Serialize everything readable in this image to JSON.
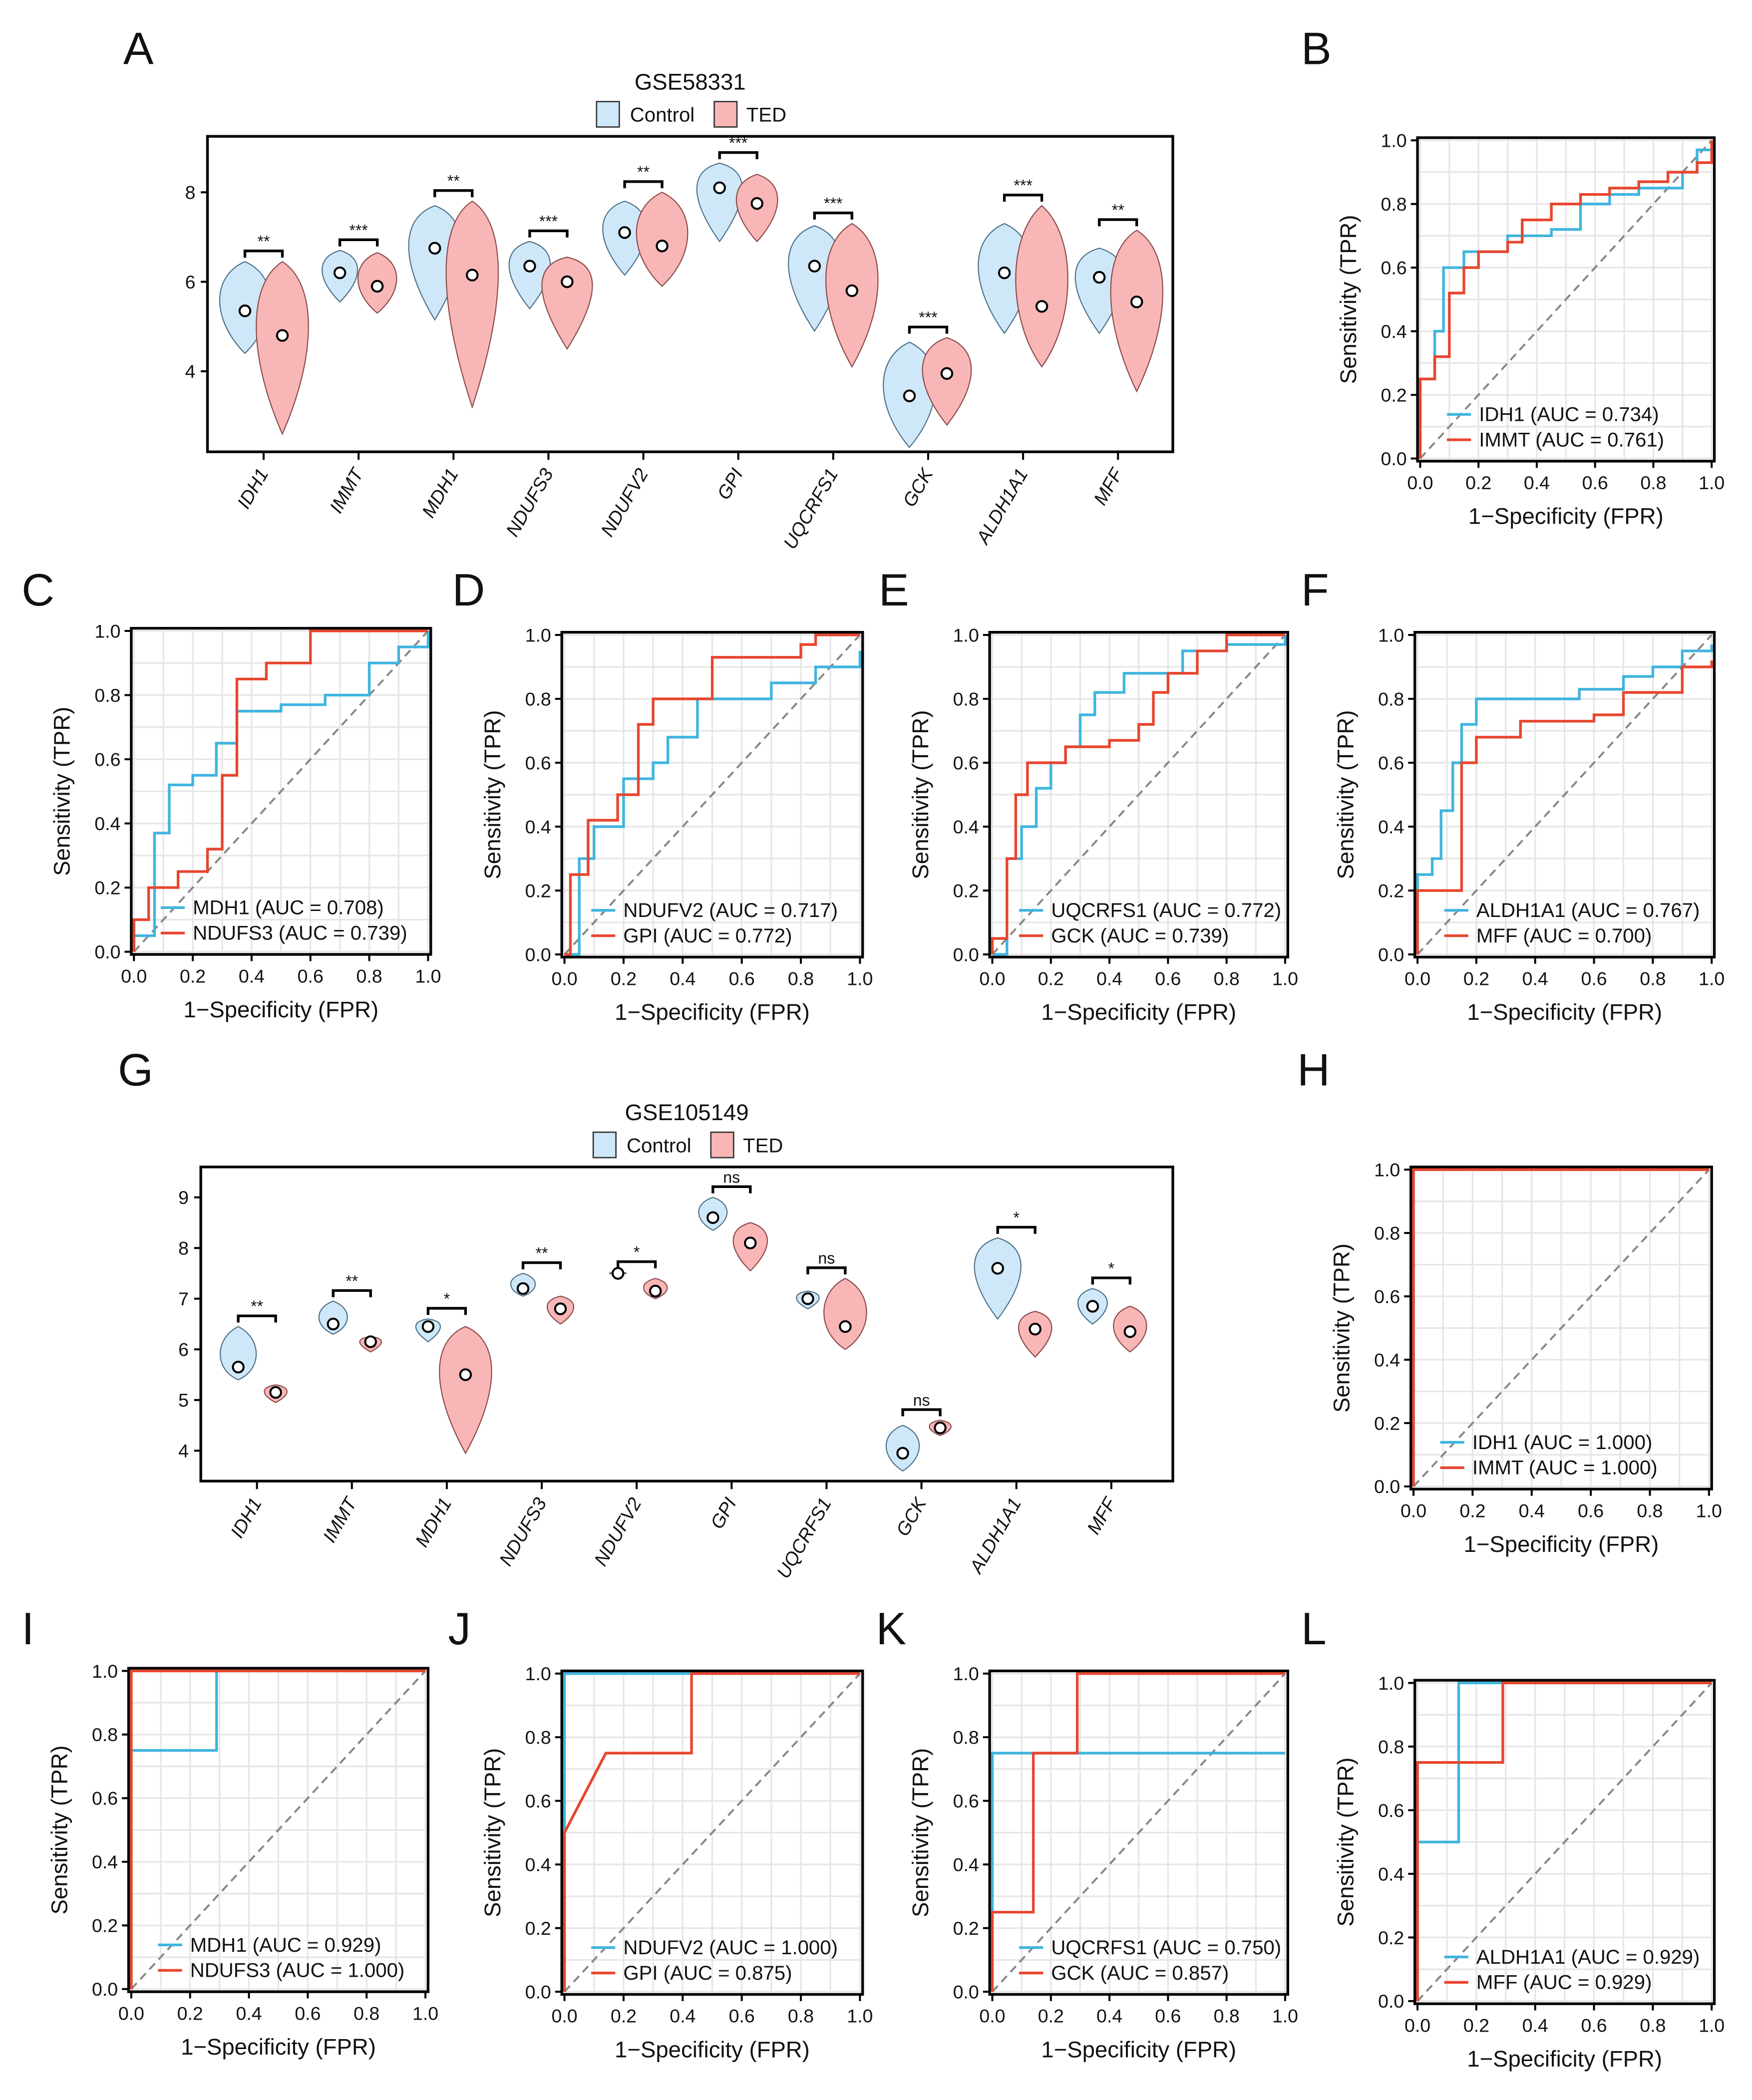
{
  "colors": {
    "control_fill": "#cfe8f9",
    "control_stroke": "#4a6f86",
    "ted_fill": "#f8b6b6",
    "ted_stroke": "#8a4848",
    "roc_blue": "#3fb4df",
    "roc_red": "#e8452e",
    "diagonal": "#888888",
    "grid": "#e6e6e6"
  },
  "chart_data": [
    {
      "panel": "A",
      "type": "violin",
      "title": "GSE58331",
      "legend": [
        "Control",
        "TED"
      ],
      "categories": [
        "IDH1",
        "IMMT",
        "MDH1",
        "NDUFS3",
        "NDUFV2",
        "GPI",
        "UQCRFS1",
        "GCK",
        "ALDH1A1",
        "MFF"
      ],
      "ylim": [
        2.2,
        9.25
      ],
      "yticks": [
        "4",
        "6",
        "8"
      ],
      "ytick_values": [
        4,
        6,
        8
      ],
      "series": [
        {
          "name": "Control",
          "median": [
            5.35,
            6.2,
            6.75,
            6.35,
            7.1,
            8.1,
            6.35,
            3.45,
            6.2,
            6.1
          ],
          "min": [
            4.4,
            5.55,
            5.15,
            5.4,
            6.15,
            6.9,
            4.9,
            2.3,
            4.85,
            4.85
          ],
          "max": [
            6.45,
            6.7,
            7.7,
            6.9,
            7.8,
            8.65,
            7.25,
            4.65,
            7.3,
            6.75
          ]
        },
        {
          "name": "TED",
          "median": [
            4.8,
            5.9,
            6.15,
            6.0,
            6.8,
            7.75,
            5.8,
            3.95,
            5.45,
            5.55
          ],
          "min": [
            2.6,
            5.3,
            3.2,
            4.5,
            5.9,
            6.9,
            4.1,
            2.8,
            4.1,
            3.55
          ],
          "max": [
            6.45,
            6.65,
            7.8,
            6.55,
            8.0,
            8.4,
            7.3,
            4.75,
            7.7,
            7.15
          ]
        }
      ],
      "significance": [
        "**",
        "***",
        "**",
        "***",
        "**",
        "***",
        "***",
        "***",
        "***",
        "**"
      ]
    },
    {
      "panel": "B",
      "type": "line",
      "xlabel": "1−Specificity (FPR)",
      "ylabel": "Sensitivity (TPR)",
      "ticks": [
        "0.0",
        "0.2",
        "0.4",
        "0.6",
        "0.8",
        "1.0"
      ],
      "series": [
        {
          "name": "IDH1 (AUC = 0.734)",
          "color": "blue",
          "points": [
            [
              0,
              0.25
            ],
            [
              0.05,
              0.3
            ],
            [
              0.05,
              0.4
            ],
            [
              0.08,
              0.6
            ],
            [
              0.15,
              0.65
            ],
            [
              0.3,
              0.7
            ],
            [
              0.45,
              0.72
            ],
            [
              0.55,
              0.8
            ],
            [
              0.65,
              0.83
            ],
            [
              0.75,
              0.85
            ],
            [
              0.9,
              0.9
            ],
            [
              0.95,
              0.97
            ],
            [
              1,
              1
            ]
          ]
        },
        {
          "name": "IMMT (AUC = 0.761)",
          "color": "red",
          "points": [
            [
              0,
              0.25
            ],
            [
              0.05,
              0.32
            ],
            [
              0.1,
              0.52
            ],
            [
              0.15,
              0.6
            ],
            [
              0.2,
              0.65
            ],
            [
              0.3,
              0.68
            ],
            [
              0.35,
              0.75
            ],
            [
              0.45,
              0.8
            ],
            [
              0.55,
              0.83
            ],
            [
              0.65,
              0.85
            ],
            [
              0.75,
              0.87
            ],
            [
              0.85,
              0.9
            ],
            [
              0.95,
              0.93
            ],
            [
              1,
              1
            ]
          ]
        }
      ]
    },
    {
      "panel": "C",
      "type": "line",
      "xlabel": "1−Specificity (FPR)",
      "ylabel": "Sensitivity (TPR)",
      "ticks": [
        "0.0",
        "0.2",
        "0.4",
        "0.6",
        "0.8",
        "1.0"
      ],
      "series": [
        {
          "name": "MDH1 (AUC = 0.708)",
          "color": "blue",
          "points": [
            [
              0,
              0.05
            ],
            [
              0.07,
              0.37
            ],
            [
              0.12,
              0.52
            ],
            [
              0.2,
              0.55
            ],
            [
              0.28,
              0.65
            ],
            [
              0.35,
              0.75
            ],
            [
              0.5,
              0.77
            ],
            [
              0.65,
              0.8
            ],
            [
              0.8,
              0.9
            ],
            [
              0.9,
              0.95
            ],
            [
              1,
              1
            ]
          ]
        },
        {
          "name": "NDUFS3 (AUC = 0.739)",
          "color": "red",
          "points": [
            [
              0,
              0.1
            ],
            [
              0.05,
              0.2
            ],
            [
              0.15,
              0.25
            ],
            [
              0.25,
              0.32
            ],
            [
              0.3,
              0.55
            ],
            [
              0.35,
              0.85
            ],
            [
              0.45,
              0.9
            ],
            [
              0.6,
              1
            ],
            [
              1,
              1
            ]
          ]
        }
      ]
    },
    {
      "panel": "D",
      "type": "line",
      "xlabel": "1−Specificity (FPR)",
      "ylabel": "Sensitivity (TPR)",
      "ticks": [
        "0.0",
        "0.2",
        "0.4",
        "0.6",
        "0.8",
        "1.0"
      ],
      "series": [
        {
          "name": "NDUFV2 (AUC = 0.717)",
          "color": "blue",
          "points": [
            [
              0.05,
              0.3
            ],
            [
              0.1,
              0.4
            ],
            [
              0.2,
              0.55
            ],
            [
              0.3,
              0.6
            ],
            [
              0.35,
              0.68
            ],
            [
              0.45,
              0.8
            ],
            [
              0.7,
              0.85
            ],
            [
              0.85,
              0.9
            ],
            [
              1,
              0.95
            ]
          ]
        },
        {
          "name": "GPI (AUC = 0.772)",
          "color": "red",
          "points": [
            [
              0.02,
              0.25
            ],
            [
              0.08,
              0.42
            ],
            [
              0.18,
              0.5
            ],
            [
              0.25,
              0.72
            ],
            [
              0.3,
              0.8
            ],
            [
              0.5,
              0.93
            ],
            [
              0.8,
              0.97
            ],
            [
              0.85,
              1
            ],
            [
              1,
              1
            ]
          ]
        }
      ]
    },
    {
      "panel": "E",
      "type": "line",
      "xlabel": "1−Specificity (FPR)",
      "ylabel": "Sensitivity (TPR)",
      "ticks": [
        "0.0",
        "0.2",
        "0.4",
        "0.6",
        "0.8",
        "1.0"
      ],
      "series": [
        {
          "name": "UQCRFS1 (AUC = 0.772)",
          "color": "blue",
          "points": [
            [
              0.05,
              0.3
            ],
            [
              0.1,
              0.4
            ],
            [
              0.15,
              0.52
            ],
            [
              0.2,
              0.6
            ],
            [
              0.25,
              0.65
            ],
            [
              0.3,
              0.75
            ],
            [
              0.35,
              0.82
            ],
            [
              0.45,
              0.88
            ],
            [
              0.65,
              0.95
            ],
            [
              0.8,
              0.97
            ],
            [
              1,
              1
            ]
          ]
        },
        {
          "name": "GCK (AUC = 0.739)",
          "color": "red",
          "points": [
            [
              0,
              0.05
            ],
            [
              0.05,
              0.3
            ],
            [
              0.08,
              0.5
            ],
            [
              0.12,
              0.6
            ],
            [
              0.25,
              0.65
            ],
            [
              0.4,
              0.67
            ],
            [
              0.5,
              0.72
            ],
            [
              0.55,
              0.82
            ],
            [
              0.6,
              0.88
            ],
            [
              0.7,
              0.95
            ],
            [
              0.8,
              1
            ],
            [
              1,
              1
            ]
          ]
        }
      ]
    },
    {
      "panel": "F",
      "type": "line",
      "xlabel": "1−Specificity (FPR)",
      "ylabel": "Sensitivity (TPR)",
      "ticks": [
        "0.0",
        "0.2",
        "0.4",
        "0.6",
        "0.8",
        "1.0"
      ],
      "series": [
        {
          "name": "ALDH1A1 (AUC = 0.767)",
          "color": "blue",
          "points": [
            [
              0,
              0.25
            ],
            [
              0.05,
              0.3
            ],
            [
              0.08,
              0.45
            ],
            [
              0.12,
              0.6
            ],
            [
              0.15,
              0.72
            ],
            [
              0.2,
              0.8
            ],
            [
              0.4,
              0.8
            ],
            [
              0.55,
              0.83
            ],
            [
              0.7,
              0.87
            ],
            [
              0.8,
              0.9
            ],
            [
              0.9,
              0.95
            ],
            [
              1,
              0.97
            ]
          ]
        },
        {
          "name": "MFF (AUC = 0.700)",
          "color": "red",
          "points": [
            [
              0,
              0.2
            ],
            [
              0.15,
              0.6
            ],
            [
              0.2,
              0.68
            ],
            [
              0.35,
              0.73
            ],
            [
              0.6,
              0.75
            ],
            [
              0.7,
              0.82
            ],
            [
              0.9,
              0.9
            ],
            [
              1,
              0.92
            ]
          ]
        }
      ]
    },
    {
      "panel": "G",
      "type": "violin",
      "title": "GSE105149",
      "legend": [
        "Control",
        "TED"
      ],
      "categories": [
        "IDH1",
        "IMMT",
        "MDH1",
        "NDUFS3",
        "NDUFV2",
        "GPI",
        "UQCRFS1",
        "GCK",
        "ALDH1A1",
        "MFF"
      ],
      "ylim": [
        3.4,
        9.6
      ],
      "yticks": [
        "4",
        "5",
        "6",
        "7",
        "8",
        "9"
      ],
      "ytick_values": [
        4,
        5,
        6,
        7,
        8,
        9
      ],
      "series": [
        {
          "name": "Control",
          "median": [
            5.65,
            6.5,
            6.45,
            7.2,
            7.5,
            8.6,
            7.0,
            3.95,
            7.6,
            6.85
          ],
          "min": [
            5.4,
            6.3,
            6.15,
            7.05,
            7.48,
            8.35,
            6.8,
            3.6,
            6.6,
            6.5
          ],
          "max": [
            6.45,
            6.95,
            6.6,
            7.5,
            7.52,
            9.0,
            7.15,
            4.5,
            8.2,
            7.2
          ]
        },
        {
          "name": "TED",
          "median": [
            5.15,
            6.15,
            5.5,
            6.8,
            7.15,
            8.1,
            6.45,
            4.45,
            6.4,
            6.35
          ],
          "min": [
            4.95,
            5.95,
            3.95,
            6.5,
            7.0,
            7.55,
            6.0,
            4.3,
            5.85,
            5.95
          ],
          "max": [
            5.3,
            6.25,
            6.45,
            7.05,
            7.4,
            8.5,
            7.4,
            4.6,
            6.75,
            6.85
          ]
        }
      ],
      "significance": [
        "**",
        "**",
        "*",
        "**",
        "*",
        "ns",
        "ns",
        "ns",
        "*",
        "*"
      ]
    },
    {
      "panel": "H",
      "type": "line",
      "xlabel": "1−Specificity (FPR)",
      "ylabel": "Sensitivity (TPR)",
      "ticks": [
        "0.0",
        "0.2",
        "0.4",
        "0.6",
        "0.8",
        "1.0"
      ],
      "series": [
        {
          "name": "IDH1 (AUC = 1.000)",
          "color": "blue",
          "points": [
            [
              0,
              1
            ],
            [
              1,
              1
            ]
          ]
        },
        {
          "name": "IMMT (AUC = 1.000)",
          "color": "red",
          "points": [
            [
              0,
              1
            ],
            [
              1,
              1
            ]
          ]
        }
      ]
    },
    {
      "panel": "I",
      "type": "line",
      "xlabel": "1−Specificity (FPR)",
      "ylabel": "Sensitivity (TPR)",
      "ticks": [
        "0.0",
        "0.2",
        "0.4",
        "0.6",
        "0.8",
        "1.0"
      ],
      "series": [
        {
          "name": "MDH1 (AUC = 0.929)",
          "color": "blue",
          "points": [
            [
              0,
              0.75
            ],
            [
              0.29,
              1
            ],
            [
              1,
              1
            ]
          ]
        },
        {
          "name": "NDUFS3 (AUC = 1.000)",
          "color": "red",
          "points": [
            [
              0,
              1
            ],
            [
              1,
              1
            ]
          ]
        }
      ]
    },
    {
      "panel": "J",
      "type": "line",
      "xlabel": "1−Specificity (FPR)",
      "ylabel": "Sensitivity (TPR)",
      "ticks": [
        "0.0",
        "0.2",
        "0.4",
        "0.6",
        "0.8",
        "1.0"
      ],
      "series": [
        {
          "name": "NDUFV2 (AUC = 1.000)",
          "color": "blue",
          "points": [
            [
              0,
              1
            ],
            [
              1,
              1
            ]
          ]
        },
        {
          "name": "GPI (AUC = 0.875)",
          "color": "red",
          "points": [
            [
              0,
              0.5
            ],
            [
              0.14,
              0.75
            ],
            [
              0.43,
              0.75
            ],
            [
              0.43,
              1
            ],
            [
              1,
              1
            ]
          ],
          "linear": true
        }
      ]
    },
    {
      "panel": "K",
      "type": "line",
      "xlabel": "1−Specificity (FPR)",
      "ylabel": "Sensitivity (TPR)",
      "ticks": [
        "0.0",
        "0.2",
        "0.4",
        "0.6",
        "0.8",
        "1.0"
      ],
      "series": [
        {
          "name": "UQCRFS1 (AUC = 0.750)",
          "color": "blue",
          "points": [
            [
              0,
              0.75
            ],
            [
              1,
              0.75
            ]
          ]
        },
        {
          "name": "GCK (AUC = 0.857)",
          "color": "red",
          "points": [
            [
              0,
              0.25
            ],
            [
              0.14,
              0.75
            ],
            [
              0.29,
              1
            ],
            [
              1,
              1
            ]
          ]
        }
      ]
    },
    {
      "panel": "L",
      "type": "line",
      "xlabel": "1−Specificity (FPR)",
      "ylabel": "Sensitivity (TPR)",
      "ticks": [
        "0.0",
        "0.2",
        "0.4",
        "0.6",
        "0.8",
        "1.0"
      ],
      "series": [
        {
          "name": "ALDH1A1 (AUC = 0.929)",
          "color": "blue",
          "points": [
            [
              0,
              0.5
            ],
            [
              0.14,
              1
            ],
            [
              1,
              1
            ]
          ]
        },
        {
          "name": "MFF (AUC = 0.929)",
          "color": "red",
          "points": [
            [
              0,
              0.75
            ],
            [
              0.29,
              1
            ],
            [
              1,
              1
            ]
          ]
        }
      ]
    }
  ]
}
